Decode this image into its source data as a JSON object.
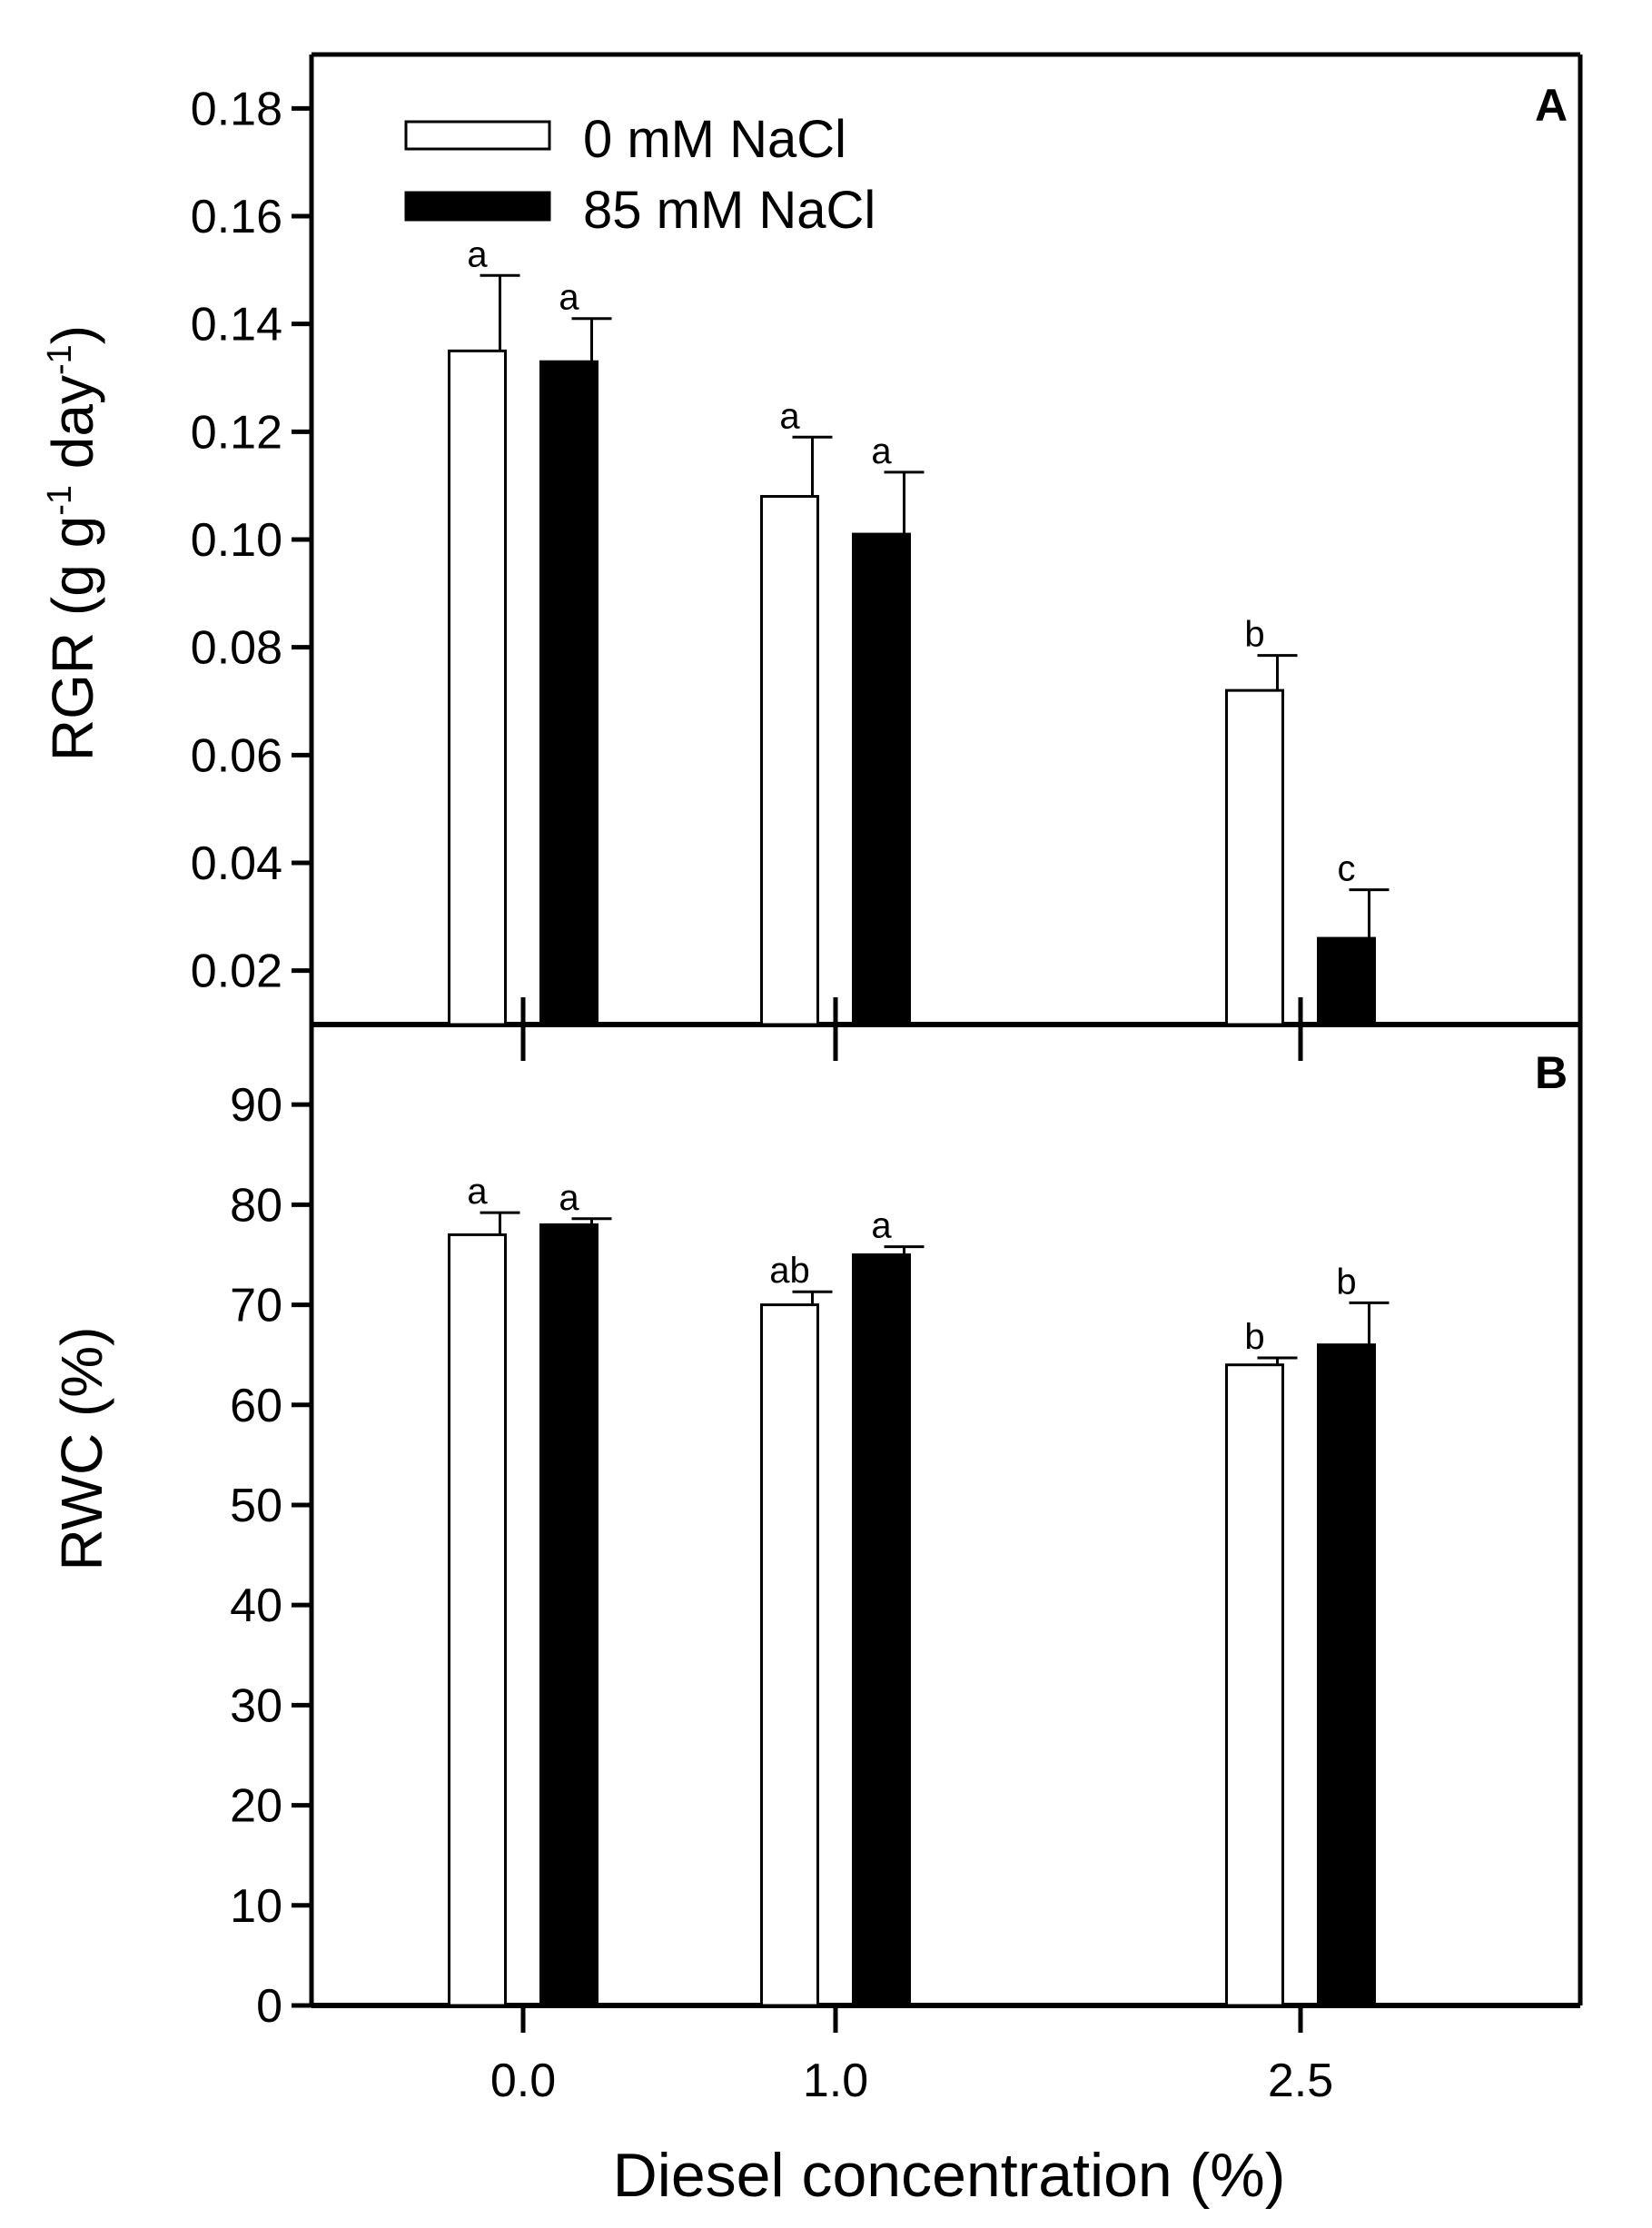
{
  "chart_data": {
    "type": "bar",
    "x_title": "Diesel concentration (%)",
    "categories": [
      "0.0",
      "1.0",
      "2.5"
    ],
    "category_values": [
      0.0,
      1.0,
      2.5
    ],
    "legend": [
      {
        "name": "0 mM NaCl",
        "fill": "#ffffff"
      },
      {
        "name": "85 mM NaCl",
        "fill": "#000000"
      }
    ],
    "panels": [
      {
        "panel_label": "A",
        "ylabel": "RGR (g g-1 day-1)",
        "ylabel_parts": {
          "base": "RGR (g g",
          "sup1": "-1",
          "mid": " day",
          "sup2": "-1",
          "end": ")"
        },
        "ylim": [
          0.01,
          0.19
        ],
        "yticks": [
          "0.02",
          "0.04",
          "0.06",
          "0.08",
          "0.10",
          "0.12",
          "0.14",
          "0.16",
          "0.18"
        ],
        "series": [
          {
            "name": "0 mM NaCl",
            "values": [
              0.135,
              0.108,
              0.072
            ],
            "errors": [
              0.014,
              0.011,
              0.0065
            ],
            "letters": [
              "a",
              "a",
              "b"
            ]
          },
          {
            "name": "85 mM NaCl",
            "values": [
              0.133,
              0.101,
              0.026
            ],
            "errors": [
              0.008,
              0.0115,
              0.009
            ],
            "letters": [
              "a",
              "a",
              "c"
            ]
          }
        ]
      },
      {
        "panel_label": "B",
        "ylabel": "RWC (%)",
        "ylim": [
          0,
          98
        ],
        "yticks": [
          "0",
          "10",
          "20",
          "30",
          "40",
          "50",
          "60",
          "70",
          "80",
          "90"
        ],
        "series": [
          {
            "name": "0 mM NaCl",
            "values": [
              77,
              70,
              64
            ],
            "errors": [
              2.2,
              1.3,
              0.7
            ],
            "letters": [
              "a",
              "ab",
              "b"
            ]
          },
          {
            "name": "85 mM NaCl",
            "values": [
              78,
              75,
              66
            ],
            "errors": [
              0.6,
              0.8,
              4.2
            ],
            "letters": [
              "a",
              "a",
              "b"
            ]
          }
        ]
      }
    ]
  }
}
